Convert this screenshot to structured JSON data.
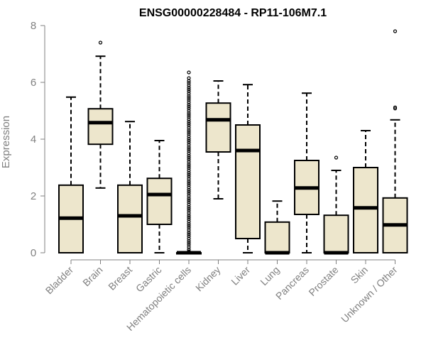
{
  "chart_data": {
    "type": "box",
    "title": "ENSG00000228484 - RP11-106M7.1",
    "ylabel": "Expression",
    "xlabel": "",
    "ylim": [
      0,
      8
    ],
    "yticks": [
      "0",
      "2",
      "4",
      "6",
      "8"
    ],
    "grid": false,
    "box_fill": "#ede6cc",
    "box_stroke": "#000000",
    "axis_color": "#808080",
    "categories": [
      "Bladder",
      "Brain",
      "Breast",
      "Gastric",
      "Hematopoietic cells",
      "Kidney",
      "Liver",
      "Lung",
      "Pancreas",
      "Prostate",
      "Skin",
      "Unknown / Other"
    ],
    "boxes": [
      {
        "category": "Bladder",
        "whisker_low": 0,
        "q1": 0,
        "median": 1.22,
        "q3": 2.38,
        "whisker_high": 5.48,
        "outliers": []
      },
      {
        "category": "Brain",
        "whisker_low": 2.28,
        "q1": 3.82,
        "median": 4.58,
        "q3": 5.07,
        "whisker_high": 6.92,
        "outliers": [
          7.4
        ]
      },
      {
        "category": "Breast",
        "whisker_low": 0,
        "q1": 0,
        "median": 1.3,
        "q3": 2.38,
        "whisker_high": 4.62,
        "outliers": []
      },
      {
        "category": "Gastric",
        "whisker_low": 0,
        "q1": 1.0,
        "median": 2.05,
        "q3": 2.62,
        "whisker_high": 3.95,
        "outliers": []
      },
      {
        "category": "Hematopoietic cells",
        "whisker_low": 0,
        "q1": 0,
        "median": 0,
        "q3": 0,
        "whisker_high": 0,
        "outliers": [
          0.05,
          0.12,
          0.2,
          0.28,
          0.35,
          0.42,
          0.5,
          0.58,
          0.65,
          0.72,
          0.8,
          0.88,
          0.95,
          1.02,
          1.1,
          1.18,
          1.25,
          1.32,
          1.4,
          1.48,
          1.55,
          1.62,
          1.7,
          1.78,
          1.85,
          1.92,
          2.0,
          2.08,
          2.15,
          2.22,
          2.3,
          2.38,
          2.45,
          2.52,
          2.6,
          2.68,
          2.75,
          2.82,
          2.9,
          2.98,
          3.05,
          3.12,
          3.2,
          3.28,
          3.35,
          3.42,
          3.5,
          3.58,
          3.65,
          3.72,
          3.8,
          3.88,
          3.95,
          4.02,
          4.1,
          4.18,
          4.25,
          4.32,
          4.4,
          4.48,
          4.55,
          4.62,
          4.7,
          4.78,
          4.85,
          4.92,
          5.0,
          5.08,
          5.15,
          5.22,
          5.3,
          5.38,
          5.45,
          5.52,
          5.6,
          5.68,
          5.75,
          5.82,
          5.9,
          5.98,
          6.05,
          6.15,
          6.35
        ]
      },
      {
        "category": "Kidney",
        "whisker_low": 1.9,
        "q1": 3.55,
        "median": 4.68,
        "q3": 5.27,
        "whisker_high": 6.05,
        "outliers": []
      },
      {
        "category": "Liver",
        "whisker_low": 0,
        "q1": 0.5,
        "median": 3.6,
        "q3": 4.5,
        "whisker_high": 5.92,
        "outliers": []
      },
      {
        "category": "Lung",
        "whisker_low": 0,
        "q1": 0,
        "median": 0,
        "q3": 1.08,
        "whisker_high": 1.82,
        "outliers": []
      },
      {
        "category": "Pancreas",
        "whisker_low": 0,
        "q1": 1.35,
        "median": 2.28,
        "q3": 3.25,
        "whisker_high": 5.62,
        "outliers": []
      },
      {
        "category": "Prostate",
        "whisker_low": 0,
        "q1": 0,
        "median": 0,
        "q3": 1.32,
        "whisker_high": 2.9,
        "outliers": [
          3.35
        ]
      },
      {
        "category": "Skin",
        "whisker_low": 0,
        "q1": 0,
        "median": 1.58,
        "q3": 3.0,
        "whisker_high": 4.3,
        "outliers": []
      },
      {
        "category": "Unknown / Other",
        "whisker_low": 0,
        "q1": 0,
        "median": 0.98,
        "q3": 1.93,
        "whisker_high": 4.68,
        "outliers": [
          5.08,
          5.12,
          7.8
        ]
      }
    ]
  }
}
